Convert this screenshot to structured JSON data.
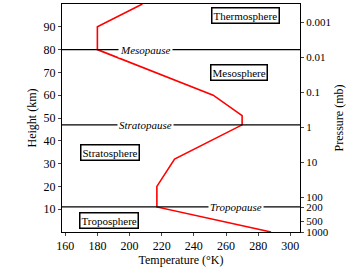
{
  "chart_data": {
    "type": "line",
    "x_label": "Temperature (°K)",
    "y_label": "Height (km)",
    "y2_label": "Pressure (mb)",
    "x": [
      288,
      217,
      217,
      228,
      270,
      270,
      252,
      180,
      180,
      208
    ],
    "values": [
      0,
      11,
      20,
      32,
      47,
      51,
      60,
      80,
      90,
      100
    ],
    "color": "#ff0000",
    "xlim": [
      158,
      306
    ],
    "xticks": [
      160,
      180,
      200,
      220,
      240,
      260,
      280,
      300
    ],
    "ylim": [
      0,
      100
    ],
    "yticks": [
      10,
      20,
      30,
      40,
      50,
      60,
      70,
      80,
      90
    ],
    "y2lim": [
      1000,
      0.0003
    ],
    "y2ticks": [
      0.001,
      0.01,
      0.1,
      1,
      10,
      100,
      200,
      500,
      1000
    ],
    "log": "y2",
    "levels": [
      {
        "label": "Mesopause",
        "y": 80,
        "x": 210
      },
      {
        "label": "Stratopause",
        "y": 47,
        "x": 210
      },
      {
        "label": "Tropopause",
        "y": 11,
        "x": 266
      }
    ],
    "regions": [
      {
        "label": "Thermosphere",
        "x": 272,
        "y": 95
      },
      {
        "label": "Mesosphere",
        "x": 268,
        "y": 70
      },
      {
        "label": "Stratosphere",
        "x": 188,
        "y": 35
      },
      {
        "label": "Troposphere",
        "x": 187,
        "y": 5
      }
    ]
  }
}
